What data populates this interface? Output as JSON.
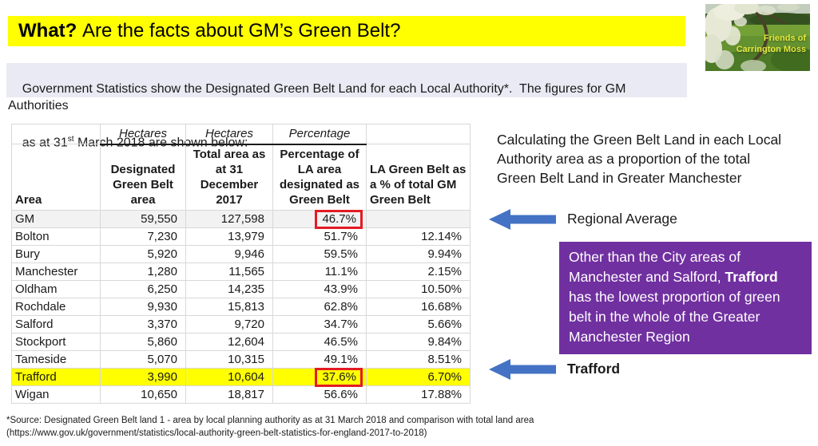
{
  "title": {
    "bold": "What?",
    "rest": " Are the facts about GM’s Green Belt?"
  },
  "logo": {
    "line1": "Friends of",
    "line2": "Carrington Moss"
  },
  "subtitle": {
    "line1": "Government Statistics show the Designated Green Belt Land for each Local Authority*.  The figures for GM Authorities",
    "line2_pre": "as at 31",
    "line2_sup": "st",
    "line2_post": " March 2018 are shown below:"
  },
  "table": {
    "unit_headers": [
      "",
      "Hectares",
      "Hectares",
      "Percentage",
      ""
    ],
    "col_headers": [
      "Area",
      "Designated Green Belt area",
      "Total area as at 31 December 2017",
      "Percentage of LA area designated as Green Belt",
      "LA Green Belt as a % of total GM Green Belt"
    ],
    "rows": [
      {
        "area": "GM",
        "green_belt": "59,550",
        "total_area": "127,598",
        "pct_la": "46.7%",
        "pct_gm": "",
        "highlight": "gm",
        "red_box": true
      },
      {
        "area": "Bolton",
        "green_belt": "7,230",
        "total_area": "13,979",
        "pct_la": "51.7%",
        "pct_gm": "12.14%"
      },
      {
        "area": "Bury",
        "green_belt": "5,920",
        "total_area": "9,946",
        "pct_la": "59.5%",
        "pct_gm": "9.94%"
      },
      {
        "area": "Manchester",
        "green_belt": "1,280",
        "total_area": "11,565",
        "pct_la": "11.1%",
        "pct_gm": "2.15%"
      },
      {
        "area": "Oldham",
        "green_belt": "6,250",
        "total_area": "14,235",
        "pct_la": "43.9%",
        "pct_gm": "10.50%"
      },
      {
        "area": "Rochdale",
        "green_belt": "9,930",
        "total_area": "15,813",
        "pct_la": "62.8%",
        "pct_gm": "16.68%"
      },
      {
        "area": "Salford",
        "green_belt": "3,370",
        "total_area": "9,720",
        "pct_la": "34.7%",
        "pct_gm": "5.66%"
      },
      {
        "area": "Stockport",
        "green_belt": "5,860",
        "total_area": "12,604",
        "pct_la": "46.5%",
        "pct_gm": "9.84%"
      },
      {
        "area": "Tameside",
        "green_belt": "5,070",
        "total_area": "10,315",
        "pct_la": "49.1%",
        "pct_gm": "8.51%"
      },
      {
        "area": "Trafford",
        "green_belt": "3,990",
        "total_area": "10,604",
        "pct_la": "37.6%",
        "pct_gm": "6.70%",
        "highlight": "trafford",
        "red_box": true
      },
      {
        "area": "Wigan",
        "green_belt": "10,650",
        "total_area": "18,817",
        "pct_la": "56.6%",
        "pct_gm": "17.88%"
      }
    ]
  },
  "annotations": {
    "calc_text": "Calculating the Green Belt Land in each Local\nAuthority area as a proportion of the total\nGreen Belt Land in Greater Manchester",
    "regional_average_label": "Regional Average",
    "trafford_label": "Trafford",
    "purple_box": {
      "pre": "Other than the City areas of Manchester and Salford, ",
      "bold": "Trafford",
      "post": " has the lowest proportion of green belt in the whole of the Greater Manchester Region"
    }
  },
  "footer": {
    "line1": "*Source: Designated Green Belt land 1 - area by local planning authority as at 31 March 2018 and comparison with total land area",
    "line2": "(https://www.gov.uk/government/statistics/local-authority-green-belt-statistics-for-england-2017-to-2018)"
  },
  "colors": {
    "title_highlight": "#FFFF00",
    "subtitle_bg": "#E9EAF3",
    "arrow_blue": "#4472C4",
    "purple_box_bg": "#7030A0",
    "red_box_border": "#E31B23",
    "gm_row_bg": "#F2F2F2",
    "trafford_row_bg": "#FFFF00"
  }
}
